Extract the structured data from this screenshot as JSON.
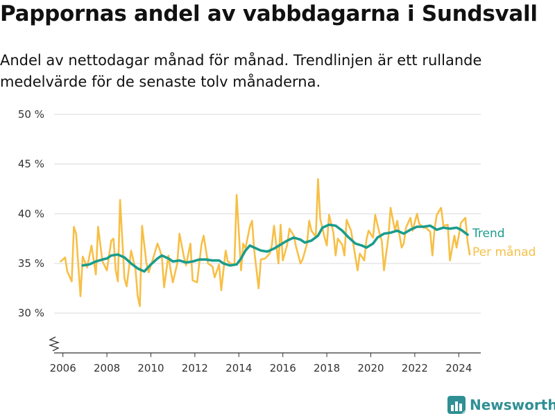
{
  "header": {
    "title": "Pappornas andel av vabbdagarna i Sundsvall",
    "subtitle": "Andel av nettodagar månad för månad. Trendlinjen är ett rullande medelvärde för de senaste tolv månaderna."
  },
  "brand": {
    "name": "Newsworthy",
    "icon": "newsworthy-logo-icon"
  },
  "colors": {
    "trend": "#1a9c8c",
    "monthly": "#f7bf46",
    "grid": "#d9d9d9",
    "brand": "#2f8f94"
  },
  "chart_data": {
    "type": "line",
    "title": "Pappornas andel av vabbdagarna i Sundsvall",
    "subtitle": "Andel av nettodagar månad för månad. Trendlinjen är ett rullande medelvärde för de senaste tolv månaderna.",
    "xlabel": "",
    "ylabel": "",
    "xlim": [
      2005.6,
      2025.0
    ],
    "ylim": [
      26,
      50
    ],
    "y_axis_break": true,
    "grid": "horizontal",
    "legend": "right, direct labels at line ends",
    "x_ticks": [
      "2006",
      "2008",
      "2010",
      "2012",
      "2014",
      "2016",
      "2018",
      "2020",
      "2022",
      "2024"
    ],
    "x_tick_values": [
      2006,
      2008,
      2010,
      2012,
      2014,
      2016,
      2018,
      2020,
      2022,
      2024
    ],
    "y_ticks": [
      "30 %",
      "35 %",
      "40 %",
      "45 %",
      "50 %"
    ],
    "y_tick_values": [
      30,
      35,
      40,
      45,
      50
    ],
    "series": [
      {
        "name": "Trend",
        "color": "#1a9c8c",
        "points": [
          [
            2006.9,
            34.8
          ],
          [
            2007.2,
            34.9
          ],
          [
            2007.5,
            35.2
          ],
          [
            2007.8,
            35.4
          ],
          [
            2008.0,
            35.5
          ],
          [
            2008.2,
            35.8
          ],
          [
            2008.5,
            35.9
          ],
          [
            2008.8,
            35.6
          ],
          [
            2009.1,
            35.0
          ],
          [
            2009.4,
            34.5
          ],
          [
            2009.7,
            34.2
          ],
          [
            2010.0,
            34.9
          ],
          [
            2010.3,
            35.5
          ],
          [
            2010.5,
            35.8
          ],
          [
            2010.8,
            35.5
          ],
          [
            2011.0,
            35.2
          ],
          [
            2011.3,
            35.3
          ],
          [
            2011.6,
            35.1
          ],
          [
            2011.9,
            35.2
          ],
          [
            2012.2,
            35.4
          ],
          [
            2012.5,
            35.4
          ],
          [
            2012.8,
            35.3
          ],
          [
            2013.1,
            35.3
          ],
          [
            2013.3,
            35.0
          ],
          [
            2013.6,
            34.8
          ],
          [
            2013.9,
            34.9
          ],
          [
            2014.1,
            35.5
          ],
          [
            2014.3,
            36.3
          ],
          [
            2014.5,
            36.8
          ],
          [
            2014.8,
            36.5
          ],
          [
            2015.0,
            36.3
          ],
          [
            2015.3,
            36.2
          ],
          [
            2015.6,
            36.5
          ],
          [
            2015.9,
            36.9
          ],
          [
            2016.2,
            37.3
          ],
          [
            2016.5,
            37.6
          ],
          [
            2016.8,
            37.4
          ],
          [
            2017.0,
            37.1
          ],
          [
            2017.3,
            37.3
          ],
          [
            2017.6,
            37.8
          ],
          [
            2017.8,
            38.6
          ],
          [
            2018.1,
            38.9
          ],
          [
            2018.4,
            38.8
          ],
          [
            2018.7,
            38.3
          ],
          [
            2019.0,
            37.6
          ],
          [
            2019.3,
            37.0
          ],
          [
            2019.6,
            36.8
          ],
          [
            2019.8,
            36.6
          ],
          [
            2020.1,
            37.0
          ],
          [
            2020.3,
            37.6
          ],
          [
            2020.6,
            38.0
          ],
          [
            2020.9,
            38.1
          ],
          [
            2021.2,
            38.3
          ],
          [
            2021.5,
            38.0
          ],
          [
            2021.8,
            38.4
          ],
          [
            2022.1,
            38.7
          ],
          [
            2022.4,
            38.7
          ],
          [
            2022.7,
            38.8
          ],
          [
            2023.0,
            38.4
          ],
          [
            2023.3,
            38.6
          ],
          [
            2023.6,
            38.5
          ],
          [
            2023.9,
            38.6
          ],
          [
            2024.1,
            38.4
          ],
          [
            2024.4,
            37.9
          ]
        ]
      },
      {
        "name": "Per månad",
        "color": "#f7bf46",
        "points": [
          [
            2005.9,
            35.2
          ],
          [
            2006.1,
            35.6
          ],
          [
            2006.2,
            34.2
          ],
          [
            2006.4,
            33.2
          ],
          [
            2006.5,
            38.7
          ],
          [
            2006.6,
            38.0
          ],
          [
            2006.8,
            31.7
          ],
          [
            2006.9,
            35.7
          ],
          [
            2007.1,
            34.6
          ],
          [
            2007.3,
            36.8
          ],
          [
            2007.5,
            33.9
          ],
          [
            2007.6,
            38.7
          ],
          [
            2007.8,
            35.2
          ],
          [
            2008.0,
            34.3
          ],
          [
            2008.2,
            37.3
          ],
          [
            2008.3,
            37.5
          ],
          [
            2008.4,
            34.3
          ],
          [
            2008.5,
            33.2
          ],
          [
            2008.6,
            41.4
          ],
          [
            2008.8,
            33.5
          ],
          [
            2008.9,
            32.7
          ],
          [
            2009.1,
            36.3
          ],
          [
            2009.3,
            34.4
          ],
          [
            2009.4,
            31.7
          ],
          [
            2009.5,
            30.7
          ],
          [
            2009.6,
            38.8
          ],
          [
            2009.8,
            35.0
          ],
          [
            2009.9,
            34.1
          ],
          [
            2010.1,
            35.5
          ],
          [
            2010.3,
            37.0
          ],
          [
            2010.4,
            36.4
          ],
          [
            2010.5,
            35.7
          ],
          [
            2010.6,
            32.6
          ],
          [
            2010.8,
            35.8
          ],
          [
            2010.9,
            34.3
          ],
          [
            2011.0,
            33.1
          ],
          [
            2011.2,
            35.0
          ],
          [
            2011.3,
            38.0
          ],
          [
            2011.5,
            35.7
          ],
          [
            2011.6,
            34.8
          ],
          [
            2011.8,
            37.0
          ],
          [
            2011.9,
            33.3
          ],
          [
            2012.1,
            33.1
          ],
          [
            2012.3,
            36.9
          ],
          [
            2012.4,
            37.8
          ],
          [
            2012.6,
            35.0
          ],
          [
            2012.8,
            34.7
          ],
          [
            2012.9,
            33.6
          ],
          [
            2013.1,
            34.9
          ],
          [
            2013.2,
            32.3
          ],
          [
            2013.4,
            36.3
          ],
          [
            2013.5,
            35.2
          ],
          [
            2013.7,
            34.9
          ],
          [
            2013.8,
            35.0
          ],
          [
            2013.9,
            41.9
          ],
          [
            2014.1,
            34.3
          ],
          [
            2014.2,
            37.0
          ],
          [
            2014.3,
            36.5
          ],
          [
            2014.5,
            38.7
          ],
          [
            2014.6,
            39.3
          ],
          [
            2014.7,
            36.3
          ],
          [
            2014.9,
            32.5
          ],
          [
            2015.0,
            35.4
          ],
          [
            2015.2,
            35.5
          ],
          [
            2015.4,
            36.0
          ],
          [
            2015.5,
            36.8
          ],
          [
            2015.6,
            38.8
          ],
          [
            2015.8,
            35.0
          ],
          [
            2015.9,
            38.9
          ],
          [
            2016.0,
            35.3
          ],
          [
            2016.2,
            36.9
          ],
          [
            2016.3,
            38.5
          ],
          [
            2016.5,
            37.8
          ],
          [
            2016.6,
            36.7
          ],
          [
            2016.8,
            35.0
          ],
          [
            2016.9,
            35.4
          ],
          [
            2017.1,
            37.0
          ],
          [
            2017.2,
            39.3
          ],
          [
            2017.3,
            38.3
          ],
          [
            2017.5,
            37.7
          ],
          [
            2017.6,
            43.5
          ],
          [
            2017.7,
            39.5
          ],
          [
            2017.9,
            37.6
          ],
          [
            2018.0,
            36.8
          ],
          [
            2018.1,
            39.9
          ],
          [
            2018.3,
            38.1
          ],
          [
            2018.4,
            35.8
          ],
          [
            2018.5,
            37.5
          ],
          [
            2018.7,
            36.9
          ],
          [
            2018.8,
            35.8
          ],
          [
            2018.9,
            39.4
          ],
          [
            2019.1,
            38.3
          ],
          [
            2019.2,
            37.0
          ],
          [
            2019.4,
            34.3
          ],
          [
            2019.5,
            36.0
          ],
          [
            2019.7,
            35.3
          ],
          [
            2019.8,
            37.4
          ],
          [
            2019.9,
            38.3
          ],
          [
            2020.1,
            37.6
          ],
          [
            2020.2,
            39.9
          ],
          [
            2020.4,
            38.0
          ],
          [
            2020.5,
            37.3
          ],
          [
            2020.6,
            34.3
          ],
          [
            2020.8,
            37.7
          ],
          [
            2020.9,
            40.6
          ],
          [
            2021.1,
            38.3
          ],
          [
            2021.2,
            39.3
          ],
          [
            2021.4,
            36.6
          ],
          [
            2021.5,
            37.0
          ],
          [
            2021.6,
            38.6
          ],
          [
            2021.8,
            39.6
          ],
          [
            2021.9,
            38.3
          ],
          [
            2022.1,
            40.0
          ],
          [
            2022.2,
            39.0
          ],
          [
            2022.4,
            38.6
          ],
          [
            2022.5,
            38.6
          ],
          [
            2022.7,
            38.2
          ],
          [
            2022.8,
            35.8
          ],
          [
            2022.9,
            38.5
          ],
          [
            2023.0,
            39.9
          ],
          [
            2023.2,
            40.6
          ],
          [
            2023.3,
            38.8
          ],
          [
            2023.5,
            38.9
          ],
          [
            2023.6,
            35.3
          ],
          [
            2023.8,
            37.8
          ],
          [
            2023.9,
            36.6
          ],
          [
            2024.0,
            37.8
          ],
          [
            2024.1,
            39.1
          ],
          [
            2024.3,
            39.6
          ],
          [
            2024.4,
            37.2
          ],
          [
            2024.5,
            35.9
          ]
        ]
      }
    ]
  }
}
